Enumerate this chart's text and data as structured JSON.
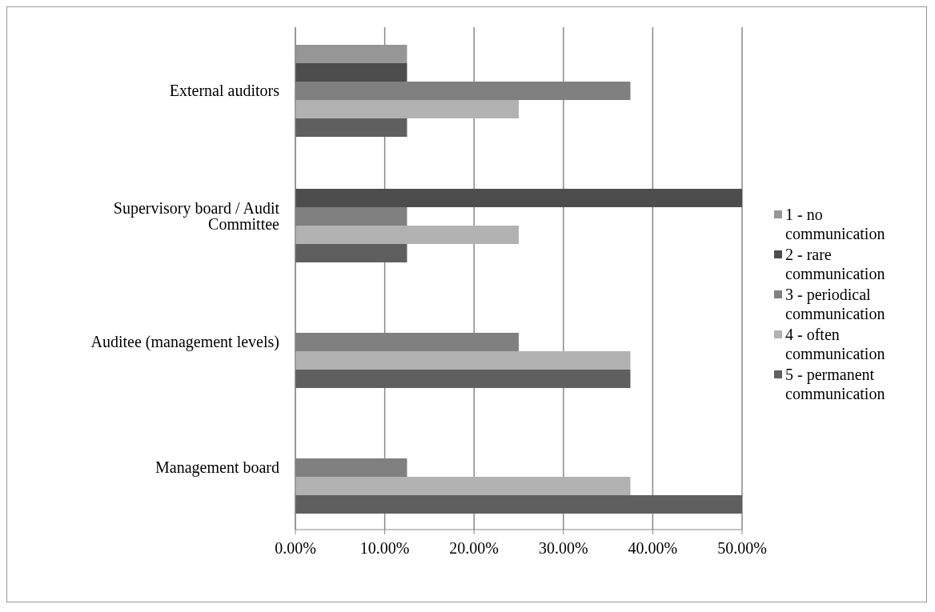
{
  "chart_data": {
    "type": "bar",
    "orientation": "horizontal",
    "categories": [
      "External auditors",
      "Supervisory board / Audit Committee",
      "Auditee (management levels)",
      "Management board"
    ],
    "series": [
      {
        "name": "1 - no communication",
        "color": "#969696",
        "values": [
          12.5,
          0,
          0,
          0
        ]
      },
      {
        "name": "2 - rare communication",
        "color": "#4d4d4d",
        "values": [
          12.5,
          50,
          0,
          0
        ]
      },
      {
        "name": "3 - periodical communication",
        "color": "#808080",
        "values": [
          37.5,
          12.5,
          25,
          12.5
        ]
      },
      {
        "name": "4 - often communication",
        "color": "#b2b2b2",
        "values": [
          25,
          25,
          37.5,
          37.5
        ]
      },
      {
        "name": "5 - permanent communication",
        "color": "#5f5f5f",
        "values": [
          12.5,
          12.5,
          37.5,
          50
        ]
      }
    ],
    "xlim": [
      0,
      50
    ],
    "xticks": [
      {
        "value": 0,
        "label": "0.00%"
      },
      {
        "value": 10,
        "label": "10.00%"
      },
      {
        "value": 20,
        "label": "20.00%"
      },
      {
        "value": 30,
        "label": "30.00%"
      },
      {
        "value": 40,
        "label": "40.00%"
      },
      {
        "value": 50,
        "label": "50.00%"
      }
    ],
    "grid": "x",
    "legend": "right"
  }
}
